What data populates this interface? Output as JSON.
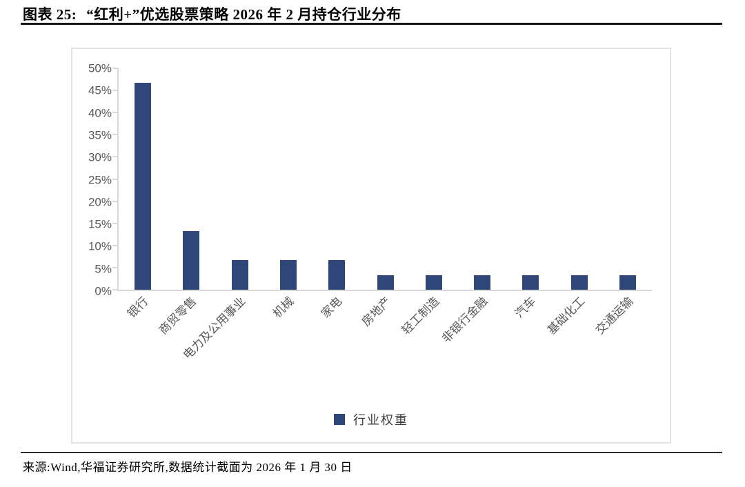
{
  "header": {
    "title_prefix": "图表 25:",
    "title_main": "“红利+”优选股票策略 2026 年 2 月持仓行业分布"
  },
  "footer": {
    "source_text": "来源:Wind,华福证券研究所,数据统计截面为 2026 年 1 月 30 日"
  },
  "colors": {
    "bar": "#2f4679",
    "axis": "#d9d9d9",
    "tick_label": "#595959",
    "chart_border": "#e3e3e3"
  },
  "chart_data": {
    "type": "bar",
    "title": "“红利+”优选股票策略 2026 年 2 月持仓行业分布",
    "categories": [
      "银行",
      "商贸零售",
      "电力及公用事业",
      "机械",
      "家电",
      "房地产",
      "轻工制造",
      "非银行金融",
      "汽车",
      "基础化工",
      "交通运输"
    ],
    "values": [
      46.7,
      13.3,
      6.7,
      6.7,
      6.7,
      3.3,
      3.3,
      3.3,
      3.3,
      3.3,
      3.3
    ],
    "unit": "%",
    "xlabel": "",
    "ylabel": "",
    "ylim": [
      0,
      50
    ],
    "ytick_step": 5,
    "ytick_labels": [
      "0%",
      "5%",
      "10%",
      "15%",
      "20%",
      "25%",
      "30%",
      "35%",
      "40%",
      "45%",
      "50%"
    ],
    "legend": [
      "行业权重"
    ],
    "legend_position": "bottom-center",
    "grid": false,
    "bar_color": "#2f4679"
  }
}
